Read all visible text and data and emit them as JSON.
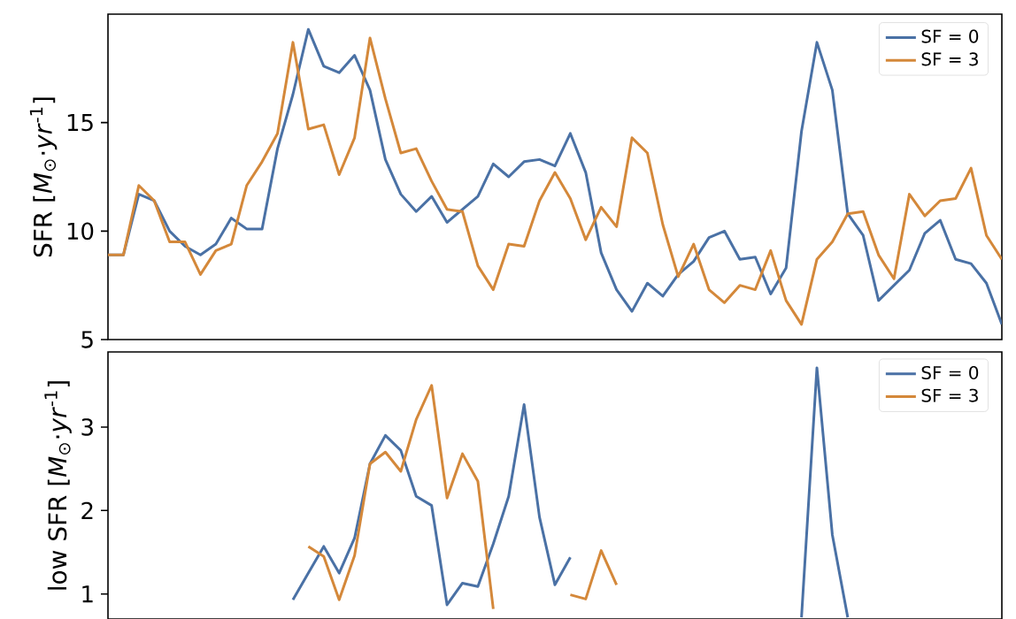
{
  "chart_data": [
    {
      "type": "line",
      "ylabel": "SFR [*M*$_{⊙}$·*yr*$^{-1}$]",
      "categories": [
        null,
        null,
        null,
        null,
        null,
        null,
        null,
        null,
        null,
        null,
        null,
        null,
        null,
        null,
        null,
        null,
        null,
        null,
        null,
        null,
        null,
        null,
        null,
        null,
        null,
        null,
        null,
        null,
        null,
        null,
        null,
        null,
        null,
        null,
        null,
        null,
        null,
        null,
        null,
        null,
        null,
        null,
        null,
        null,
        null,
        null,
        null,
        null,
        null,
        null,
        null,
        null,
        null,
        null,
        null,
        null,
        null,
        null,
        null
      ],
      "ylim": [
        5,
        20
      ],
      "yticks": [
        5,
        10,
        15
      ],
      "tick_labels": "y",
      "legend": "top right",
      "marker": "none",
      "line_style": "solid",
      "series": [
        {
          "name": "SF = 0",
          "color": "#4a71a5",
          "values": [
            8.9,
            8.9,
            11.7,
            11.4,
            10.0,
            9.3,
            8.9,
            9.4,
            10.6,
            10.1,
            10.1,
            13.8,
            16.3,
            19.3,
            17.6,
            17.3,
            18.1,
            16.5,
            13.3,
            11.7,
            10.9,
            11.6,
            10.4,
            11.0,
            11.6,
            13.1,
            12.5,
            13.2,
            13.3,
            13.0,
            14.5,
            12.7,
            9.0,
            7.3,
            6.3,
            7.6,
            7.0,
            8.0,
            8.6,
            9.7,
            10.0,
            8.7,
            8.8,
            7.1,
            8.3,
            14.6,
            18.7,
            16.5,
            10.8,
            9.8,
            6.8,
            7.5,
            8.2,
            9.9,
            10.5,
            8.7,
            8.5,
            7.6,
            5.7
          ]
        },
        {
          "name": "SF = 3",
          "color": "#d4883a",
          "values": [
            8.9,
            8.9,
            12.1,
            11.4,
            9.5,
            9.5,
            8.0,
            9.1,
            9.4,
            12.1,
            13.2,
            14.5,
            18.7,
            14.7,
            14.9,
            12.6,
            14.3,
            18.9,
            16.1,
            13.6,
            13.8,
            12.3,
            11.0,
            10.9,
            8.4,
            7.3,
            9.4,
            9.3,
            11.4,
            12.7,
            11.5,
            9.6,
            11.1,
            10.2,
            14.3,
            13.6,
            10.3,
            7.9,
            9.4,
            7.3,
            6.7,
            7.5,
            7.3,
            9.1,
            6.8,
            5.7,
            8.7,
            9.5,
            10.8,
            10.9,
            8.9,
            7.8,
            11.7,
            10.7,
            11.4,
            11.5,
            12.9,
            9.8,
            8.7
          ]
        }
      ]
    },
    {
      "type": "line",
      "ylabel": "low SFR [*M*$_{⊙}$·*yr*$^{-1}$]",
      "categories": [
        null,
        null,
        null,
        null,
        null,
        null,
        null,
        null,
        null,
        null,
        null,
        null,
        null,
        null,
        null,
        null,
        null,
        null,
        null,
        null,
        null,
        null,
        null,
        null,
        null,
        null,
        null,
        null,
        null,
        null,
        null,
        null,
        null,
        null,
        null,
        null,
        null,
        null,
        null,
        null,
        null,
        null,
        null,
        null,
        null,
        null,
        null,
        null,
        null,
        null,
        null,
        null,
        null,
        null,
        null,
        null,
        null,
        null,
        null
      ],
      "ylim": [
        0.7,
        3.9
      ],
      "yticks": [
        1,
        2,
        3
      ],
      "tick_labels": "y",
      "legend": "top right",
      "marker": "none",
      "line_style": "solid",
      "series": [
        {
          "name": "SF = 0",
          "color": "#4a71a5",
          "values": [
            null,
            null,
            null,
            null,
            null,
            null,
            null,
            null,
            null,
            null,
            null,
            null,
            0.93,
            1.25,
            1.57,
            1.25,
            1.67,
            2.56,
            2.9,
            2.72,
            2.17,
            2.06,
            0.87,
            1.13,
            1.09,
            1.6,
            2.17,
            3.27,
            1.92,
            1.11,
            1.44,
            null,
            null,
            null,
            null,
            null,
            null,
            null,
            null,
            null,
            null,
            null,
            null,
            null,
            null,
            0.72,
            3.71,
            1.71,
            0.72,
            null,
            null,
            null,
            null,
            null,
            null,
            null,
            null,
            null,
            null
          ]
        },
        {
          "name": "SF = 3",
          "color": "#d4883a",
          "values": [
            null,
            null,
            null,
            null,
            null,
            null,
            null,
            null,
            null,
            null,
            null,
            null,
            null,
            1.57,
            1.45,
            0.93,
            1.46,
            2.56,
            2.7,
            2.47,
            3.09,
            3.5,
            2.15,
            2.68,
            2.35,
            0.82,
            null,
            null,
            null,
            null,
            0.99,
            0.94,
            1.52,
            1.11,
            null,
            null,
            null,
            null,
            null,
            null,
            null,
            null,
            null,
            null,
            null,
            null,
            null,
            null,
            null,
            null,
            null,
            null,
            null,
            null,
            null,
            null,
            null,
            null,
            null
          ]
        }
      ]
    }
  ]
}
